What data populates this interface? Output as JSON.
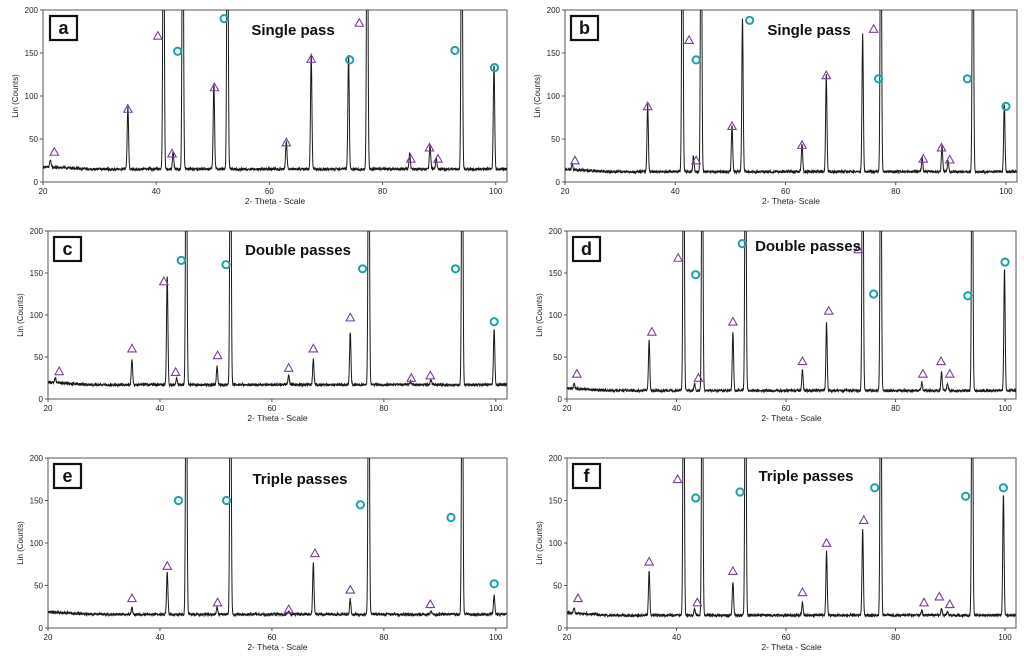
{
  "chart_data": [
    {
      "type": "line",
      "panel_label": "a",
      "title": "Single pass",
      "xlabel": "2- Theta - Scale",
      "ylabel": "Lin (Counts)",
      "xlim": [
        20,
        102
      ],
      "ylim": [
        0,
        200
      ],
      "xticks": [
        20,
        40,
        60,
        80,
        100
      ],
      "yticks": [
        0,
        50,
        100,
        150,
        200
      ],
      "baseline": 15,
      "peaks": [
        {
          "x": 21.3,
          "h": 8
        },
        {
          "x": 35.0,
          "h": 73
        },
        {
          "x": 41.3,
          "h": 400
        },
        {
          "x": 43.0,
          "h": 20
        },
        {
          "x": 44.7,
          "h": 400
        },
        {
          "x": 50.2,
          "h": 100
        },
        {
          "x": 52.6,
          "h": 400
        },
        {
          "x": 63.0,
          "h": 33
        },
        {
          "x": 67.4,
          "h": 133
        },
        {
          "x": 74.0,
          "h": 133
        },
        {
          "x": 77.3,
          "h": 400
        },
        {
          "x": 84.8,
          "h": 18
        },
        {
          "x": 88.4,
          "h": 28
        },
        {
          "x": 89.5,
          "h": 12
        },
        {
          "x": 94.0,
          "h": 400
        },
        {
          "x": 99.7,
          "h": 122
        }
      ],
      "markers": [
        {
          "shape": "triangle",
          "x": 22.0,
          "y": 35
        },
        {
          "shape": "triangle",
          "x": 35.0,
          "y": 85
        },
        {
          "shape": "triangle",
          "x": 40.3,
          "y": 170
        },
        {
          "shape": "triangle",
          "x": 42.8,
          "y": 33
        },
        {
          "shape": "circle",
          "x": 43.8,
          "y": 152
        },
        {
          "shape": "triangle",
          "x": 50.3,
          "y": 110
        },
        {
          "shape": "circle",
          "x": 52.0,
          "y": 190
        },
        {
          "shape": "triangle",
          "x": 63.0,
          "y": 46
        },
        {
          "shape": "triangle",
          "x": 67.4,
          "y": 143
        },
        {
          "shape": "circle",
          "x": 74.2,
          "y": 142
        },
        {
          "shape": "triangle",
          "x": 75.9,
          "y": 185
        },
        {
          "shape": "triangle",
          "x": 85.0,
          "y": 27
        },
        {
          "shape": "triangle",
          "x": 88.3,
          "y": 40
        },
        {
          "shape": "triangle",
          "x": 89.8,
          "y": 27
        },
        {
          "shape": "circle",
          "x": 92.8,
          "y": 153
        },
        {
          "shape": "circle",
          "x": 99.8,
          "y": 133
        }
      ]
    },
    {
      "type": "line",
      "panel_label": "b",
      "title": "Single pass",
      "xlabel": "2- Theta- Scale",
      "ylabel": "Lin (Counts)",
      "xlim": [
        20,
        102
      ],
      "ylim": [
        0,
        200
      ],
      "xticks": [
        20,
        40,
        60,
        80,
        100
      ],
      "yticks": [
        0,
        50,
        100,
        150,
        200
      ],
      "baseline": 12,
      "peaks": [
        {
          "x": 21.3,
          "h": 6
        },
        {
          "x": 35.0,
          "h": 78
        },
        {
          "x": 41.3,
          "h": 400
        },
        {
          "x": 43.3,
          "h": 18
        },
        {
          "x": 44.7,
          "h": 400
        },
        {
          "x": 50.3,
          "h": 55
        },
        {
          "x": 52.2,
          "h": 178
        },
        {
          "x": 63.0,
          "h": 32
        },
        {
          "x": 67.4,
          "h": 112
        },
        {
          "x": 74.0,
          "h": 160
        },
        {
          "x": 77.3,
          "h": 400
        },
        {
          "x": 84.8,
          "h": 16
        },
        {
          "x": 88.4,
          "h": 30
        },
        {
          "x": 89.5,
          "h": 12
        },
        {
          "x": 94.0,
          "h": 400
        },
        {
          "x": 99.7,
          "h": 78
        }
      ],
      "markers": [
        {
          "shape": "triangle",
          "x": 21.8,
          "y": 25
        },
        {
          "shape": "triangle",
          "x": 35.0,
          "y": 88
        },
        {
          "shape": "triangle",
          "x": 42.5,
          "y": 165
        },
        {
          "shape": "circle",
          "x": 43.8,
          "y": 142
        },
        {
          "shape": "triangle",
          "x": 43.8,
          "y": 25
        },
        {
          "shape": "triangle",
          "x": 50.3,
          "y": 65
        },
        {
          "shape": "circle",
          "x": 53.5,
          "y": 188
        },
        {
          "shape": "triangle",
          "x": 63.0,
          "y": 43
        },
        {
          "shape": "triangle",
          "x": 67.4,
          "y": 124
        },
        {
          "shape": "triangle",
          "x": 76.0,
          "y": 178
        },
        {
          "shape": "circle",
          "x": 76.9,
          "y": 120
        },
        {
          "shape": "triangle",
          "x": 85.0,
          "y": 27
        },
        {
          "shape": "triangle",
          "x": 88.3,
          "y": 40
        },
        {
          "shape": "triangle",
          "x": 89.8,
          "y": 26
        },
        {
          "shape": "circle",
          "x": 93.0,
          "y": 120
        },
        {
          "shape": "circle",
          "x": 100.0,
          "y": 88
        }
      ]
    },
    {
      "type": "line",
      "panel_label": "c",
      "title": "Double passes",
      "xlabel": "2- Theta - Scale",
      "ylabel": "Lin (Counts)",
      "xlim": [
        20,
        102
      ],
      "ylim": [
        0,
        200
      ],
      "xticks": [
        20,
        40,
        60,
        80,
        100
      ],
      "yticks": [
        0,
        50,
        100,
        150,
        200
      ],
      "baseline": 17,
      "peaks": [
        {
          "x": 21.3,
          "h": 6
        },
        {
          "x": 35.0,
          "h": 30
        },
        {
          "x": 41.3,
          "h": 130
        },
        {
          "x": 43.0,
          "h": 8
        },
        {
          "x": 44.7,
          "h": 400
        },
        {
          "x": 50.2,
          "h": 22
        },
        {
          "x": 52.6,
          "h": 400
        },
        {
          "x": 63.0,
          "h": 12
        },
        {
          "x": 67.4,
          "h": 30
        },
        {
          "x": 74.0,
          "h": 63
        },
        {
          "x": 77.3,
          "h": 400
        },
        {
          "x": 84.8,
          "h": 4
        },
        {
          "x": 88.4,
          "h": 6
        },
        {
          "x": 94.0,
          "h": 400
        },
        {
          "x": 99.7,
          "h": 67
        }
      ],
      "markers": [
        {
          "shape": "triangle",
          "x": 22.0,
          "y": 33
        },
        {
          "shape": "triangle",
          "x": 35.0,
          "y": 60
        },
        {
          "shape": "triangle",
          "x": 40.7,
          "y": 140
        },
        {
          "shape": "circle",
          "x": 43.8,
          "y": 165
        },
        {
          "shape": "triangle",
          "x": 42.8,
          "y": 32
        },
        {
          "shape": "triangle",
          "x": 50.3,
          "y": 52
        },
        {
          "shape": "circle",
          "x": 51.8,
          "y": 160
        },
        {
          "shape": "triangle",
          "x": 63.0,
          "y": 37
        },
        {
          "shape": "triangle",
          "x": 67.4,
          "y": 60
        },
        {
          "shape": "triangle",
          "x": 74.0,
          "y": 97
        },
        {
          "shape": "circle",
          "x": 76.2,
          "y": 155
        },
        {
          "shape": "triangle",
          "x": 84.9,
          "y": 25
        },
        {
          "shape": "triangle",
          "x": 88.3,
          "y": 28
        },
        {
          "shape": "circle",
          "x": 92.8,
          "y": 155
        },
        {
          "shape": "circle",
          "x": 99.7,
          "y": 92
        }
      ]
    },
    {
      "type": "line",
      "panel_label": "d",
      "title": "Double passes",
      "xlabel": "2- Theta - Scale",
      "ylabel": "Lin (Counts)",
      "xlim": [
        20,
        102
      ],
      "ylim": [
        0,
        200
      ],
      "xticks": [
        20,
        40,
        60,
        80,
        100
      ],
      "yticks": [
        0,
        50,
        100,
        150,
        200
      ],
      "baseline": 10,
      "peaks": [
        {
          "x": 21.3,
          "h": 6
        },
        {
          "x": 35.0,
          "h": 60
        },
        {
          "x": 41.3,
          "h": 400
        },
        {
          "x": 43.3,
          "h": 8
        },
        {
          "x": 44.7,
          "h": 400
        },
        {
          "x": 50.3,
          "h": 70
        },
        {
          "x": 52.6,
          "h": 400
        },
        {
          "x": 63.0,
          "h": 25
        },
        {
          "x": 67.4,
          "h": 80
        },
        {
          "x": 74.0,
          "h": 400
        },
        {
          "x": 77.3,
          "h": 400
        },
        {
          "x": 84.8,
          "h": 10
        },
        {
          "x": 88.4,
          "h": 22
        },
        {
          "x": 89.5,
          "h": 8
        },
        {
          "x": 94.0,
          "h": 400
        },
        {
          "x": 99.9,
          "h": 145
        }
      ],
      "markers": [
        {
          "shape": "triangle",
          "x": 21.8,
          "y": 30
        },
        {
          "shape": "triangle",
          "x": 35.5,
          "y": 80
        },
        {
          "shape": "triangle",
          "x": 40.3,
          "y": 168
        },
        {
          "shape": "circle",
          "x": 43.5,
          "y": 148
        },
        {
          "shape": "triangle",
          "x": 44.0,
          "y": 25
        },
        {
          "shape": "triangle",
          "x": 50.3,
          "y": 92
        },
        {
          "shape": "circle",
          "x": 52.0,
          "y": 185
        },
        {
          "shape": "triangle",
          "x": 63.0,
          "y": 45
        },
        {
          "shape": "triangle",
          "x": 67.8,
          "y": 105
        },
        {
          "shape": "triangle",
          "x": 73.2,
          "y": 178
        },
        {
          "shape": "circle",
          "x": 76.0,
          "y": 125
        },
        {
          "shape": "triangle",
          "x": 85.0,
          "y": 30
        },
        {
          "shape": "triangle",
          "x": 88.3,
          "y": 45
        },
        {
          "shape": "triangle",
          "x": 89.9,
          "y": 30
        },
        {
          "shape": "circle",
          "x": 93.2,
          "y": 123
        },
        {
          "shape": "circle",
          "x": 100.0,
          "y": 163
        }
      ]
    },
    {
      "type": "line",
      "panel_label": "e",
      "title": "Triple passes",
      "xlabel": "2- Theta - Scale",
      "ylabel": "Lin (Counts)",
      "xlim": [
        20,
        102
      ],
      "ylim": [
        0,
        200
      ],
      "xticks": [
        20,
        40,
        60,
        80,
        100
      ],
      "yticks": [
        0,
        50,
        100,
        150,
        200
      ],
      "baseline": 16,
      "peaks": [
        {
          "x": 35.0,
          "h": 8
        },
        {
          "x": 41.3,
          "h": 50
        },
        {
          "x": 44.7,
          "h": 400
        },
        {
          "x": 50.2,
          "h": 8
        },
        {
          "x": 52.6,
          "h": 400
        },
        {
          "x": 63.0,
          "h": 4
        },
        {
          "x": 67.4,
          "h": 60
        },
        {
          "x": 74.0,
          "h": 18
        },
        {
          "x": 77.3,
          "h": 400
        },
        {
          "x": 88.4,
          "h": 4
        },
        {
          "x": 94.0,
          "h": 400
        },
        {
          "x": 99.7,
          "h": 22
        }
      ],
      "markers": [
        {
          "shape": "triangle",
          "x": 35.0,
          "y": 35
        },
        {
          "shape": "triangle",
          "x": 41.3,
          "y": 73
        },
        {
          "shape": "circle",
          "x": 43.3,
          "y": 150
        },
        {
          "shape": "triangle",
          "x": 50.3,
          "y": 30
        },
        {
          "shape": "circle",
          "x": 51.9,
          "y": 150
        },
        {
          "shape": "triangle",
          "x": 63.0,
          "y": 22
        },
        {
          "shape": "triangle",
          "x": 67.7,
          "y": 88
        },
        {
          "shape": "triangle",
          "x": 74.0,
          "y": 45
        },
        {
          "shape": "circle",
          "x": 75.8,
          "y": 145
        },
        {
          "shape": "triangle",
          "x": 88.3,
          "y": 28
        },
        {
          "shape": "circle",
          "x": 92.0,
          "y": 130
        },
        {
          "shape": "circle",
          "x": 99.7,
          "y": 52
        }
      ]
    },
    {
      "type": "line",
      "panel_label": "f",
      "title": "Triple passes",
      "xlabel": "2- Theta - Scale",
      "ylabel": "Lin (Counts)",
      "xlim": [
        20,
        102
      ],
      "ylim": [
        0,
        200
      ],
      "xticks": [
        20,
        40,
        60,
        80,
        100
      ],
      "yticks": [
        0,
        50,
        100,
        150,
        200
      ],
      "baseline": 15,
      "peaks": [
        {
          "x": 21.3,
          "h": 6
        },
        {
          "x": 35.0,
          "h": 52
        },
        {
          "x": 41.3,
          "h": 400
        },
        {
          "x": 43.3,
          "h": 8
        },
        {
          "x": 44.7,
          "h": 400
        },
        {
          "x": 50.3,
          "h": 40
        },
        {
          "x": 52.6,
          "h": 400
        },
        {
          "x": 63.0,
          "h": 15
        },
        {
          "x": 67.4,
          "h": 75
        },
        {
          "x": 74.0,
          "h": 102
        },
        {
          "x": 77.3,
          "h": 400
        },
        {
          "x": 84.8,
          "h": 6
        },
        {
          "x": 88.4,
          "h": 8
        },
        {
          "x": 89.5,
          "h": 4
        },
        {
          "x": 94.0,
          "h": 400
        },
        {
          "x": 99.7,
          "h": 142
        }
      ],
      "markers": [
        {
          "shape": "triangle",
          "x": 22.0,
          "y": 35
        },
        {
          "shape": "triangle",
          "x": 35.0,
          "y": 78
        },
        {
          "shape": "triangle",
          "x": 40.2,
          "y": 175
        },
        {
          "shape": "circle",
          "x": 43.5,
          "y": 153
        },
        {
          "shape": "triangle",
          "x": 43.8,
          "y": 30
        },
        {
          "shape": "triangle",
          "x": 50.3,
          "y": 67
        },
        {
          "shape": "circle",
          "x": 51.6,
          "y": 160
        },
        {
          "shape": "triangle",
          "x": 63.0,
          "y": 42
        },
        {
          "shape": "triangle",
          "x": 67.4,
          "y": 100
        },
        {
          "shape": "triangle",
          "x": 74.2,
          "y": 127
        },
        {
          "shape": "circle",
          "x": 76.2,
          "y": 165
        },
        {
          "shape": "triangle",
          "x": 85.2,
          "y": 30
        },
        {
          "shape": "triangle",
          "x": 88.0,
          "y": 37
        },
        {
          "shape": "triangle",
          "x": 89.9,
          "y": 28
        },
        {
          "shape": "circle",
          "x": 92.8,
          "y": 155
        },
        {
          "shape": "circle",
          "x": 99.7,
          "y": 165
        }
      ]
    }
  ],
  "style": {
    "trace_color": "#1a1a1a",
    "triangle_color": "#7b3f98",
    "circle_color": "#1aa3a3",
    "axis_color": "#555555"
  }
}
